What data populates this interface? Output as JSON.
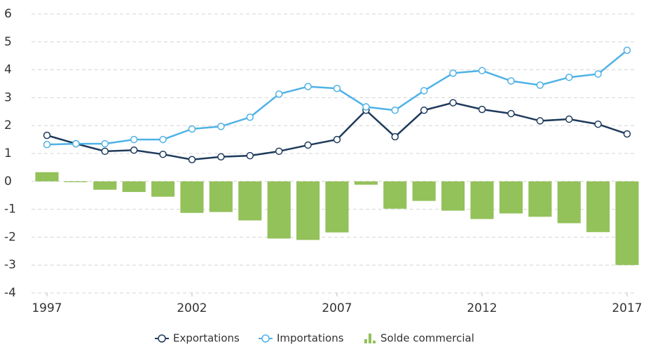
{
  "chart_data": {
    "type": "combo",
    "x": [
      1997,
      1998,
      1999,
      2000,
      2001,
      2002,
      2003,
      2004,
      2005,
      2006,
      2007,
      2008,
      2009,
      2010,
      2011,
      2012,
      2013,
      2014,
      2015,
      2016,
      2017
    ],
    "xlim": [
      1997,
      2017
    ],
    "xticks": [
      1997,
      2002,
      2007,
      2012,
      2017
    ],
    "ylim": [
      -4,
      6
    ],
    "yticks": [
      -4,
      -3,
      -2,
      -1,
      0,
      1,
      2,
      3,
      4,
      5,
      6
    ],
    "grid": true,
    "legend": "bottom",
    "series": [
      {
        "name": "Exportations",
        "kind": "line",
        "color": "#1e3a5c",
        "values": [
          1.65,
          1.35,
          1.08,
          1.12,
          0.97,
          0.78,
          0.88,
          0.92,
          1.08,
          1.3,
          1.5,
          2.55,
          1.6,
          2.55,
          2.82,
          2.58,
          2.43,
          2.17,
          2.23,
          2.05,
          1.7
        ]
      },
      {
        "name": "Importations",
        "kind": "line",
        "color": "#4fb2e6",
        "values": [
          1.32,
          1.35,
          1.35,
          1.5,
          1.5,
          1.88,
          1.97,
          2.3,
          3.13,
          3.4,
          3.33,
          2.67,
          2.55,
          3.25,
          3.88,
          3.97,
          3.6,
          3.45,
          3.73,
          3.85,
          4.7
        ]
      },
      {
        "name": "Solde commercial",
        "kind": "bar",
        "color": "#93c15a",
        "values": [
          0.33,
          -0.03,
          -0.3,
          -0.38,
          -0.55,
          -1.13,
          -1.1,
          -1.4,
          -2.05,
          -2.1,
          -1.83,
          -0.12,
          -0.98,
          -0.7,
          -1.05,
          -1.35,
          -1.15,
          -1.27,
          -1.5,
          -1.82,
          -3.0
        ]
      }
    ]
  }
}
